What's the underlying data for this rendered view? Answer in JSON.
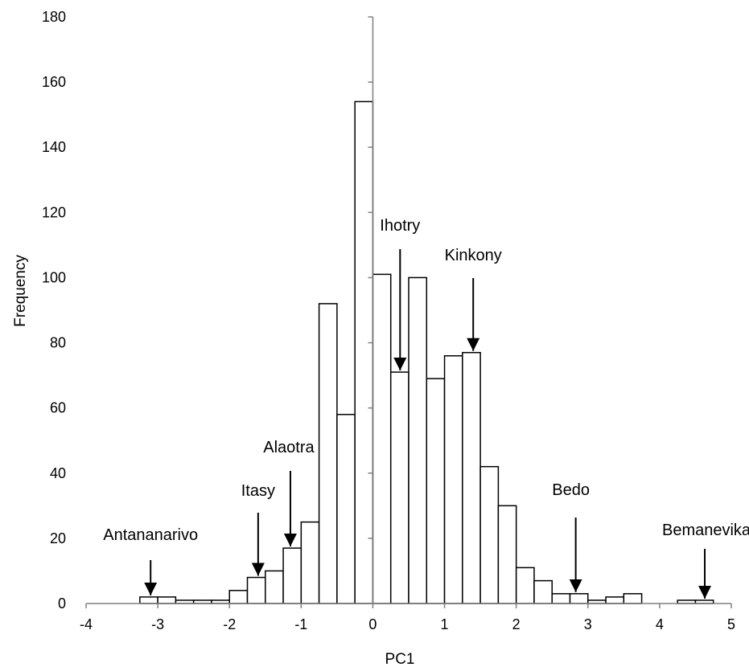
{
  "chart_data": {
    "type": "bar",
    "title": "",
    "xlabel": "PC1",
    "ylabel": "Frequency",
    "xlim": [
      -4,
      5
    ],
    "ylim": [
      0,
      180
    ],
    "x_ticks": [
      "-4",
      "-3",
      "-2",
      "-1",
      "0",
      "1",
      "2",
      "3",
      "4",
      "5"
    ],
    "y_ticks": [
      "0",
      "20",
      "40",
      "60",
      "80",
      "100",
      "120",
      "140",
      "160",
      "180"
    ],
    "grid": false,
    "legend": "none",
    "bar_fill": "#ffffff",
    "bar_stroke": "#000000",
    "bins": [
      {
        "x0": -3.25,
        "x1": -3.0,
        "value": 2
      },
      {
        "x0": -3.0,
        "x1": -2.75,
        "value": 2
      },
      {
        "x0": -2.75,
        "x1": -2.5,
        "value": 1
      },
      {
        "x0": -2.5,
        "x1": -2.25,
        "value": 1
      },
      {
        "x0": -2.25,
        "x1": -2.0,
        "value": 1
      },
      {
        "x0": -2.0,
        "x1": -1.75,
        "value": 4
      },
      {
        "x0": -1.75,
        "x1": -1.5,
        "value": 8
      },
      {
        "x0": -1.5,
        "x1": -1.25,
        "value": 10
      },
      {
        "x0": -1.25,
        "x1": -1.0,
        "value": 17
      },
      {
        "x0": -1.0,
        "x1": -0.75,
        "value": 25
      },
      {
        "x0": -0.75,
        "x1": -0.5,
        "value": 92
      },
      {
        "x0": -0.5,
        "x1": -0.25,
        "value": 58
      },
      {
        "x0": -0.25,
        "x1": 0.0,
        "value": 154
      },
      {
        "x0": 0.0,
        "x1": 0.25,
        "value": 101
      },
      {
        "x0": 0.25,
        "x1": 0.5,
        "value": 71
      },
      {
        "x0": 0.5,
        "x1": 0.75,
        "value": 100
      },
      {
        "x0": 0.75,
        "x1": 1.0,
        "value": 69
      },
      {
        "x0": 1.0,
        "x1": 1.25,
        "value": 76
      },
      {
        "x0": 1.25,
        "x1": 1.5,
        "value": 77
      },
      {
        "x0": 1.5,
        "x1": 1.75,
        "value": 42
      },
      {
        "x0": 1.75,
        "x1": 2.0,
        "value": 30
      },
      {
        "x0": 2.0,
        "x1": 2.25,
        "value": 11
      },
      {
        "x0": 2.25,
        "x1": 2.5,
        "value": 7
      },
      {
        "x0": 2.5,
        "x1": 2.75,
        "value": 3
      },
      {
        "x0": 2.75,
        "x1": 3.0,
        "value": 3
      },
      {
        "x0": 3.0,
        "x1": 3.25,
        "value": 1
      },
      {
        "x0": 3.25,
        "x1": 3.5,
        "value": 2
      },
      {
        "x0": 3.5,
        "x1": 3.75,
        "value": 3
      },
      {
        "x0": 4.25,
        "x1": 4.5,
        "value": 1
      },
      {
        "x0": 4.5,
        "x1": 4.75,
        "value": 1
      }
    ],
    "annotations": [
      {
        "label": "Antananarivo",
        "x": -3.1,
        "y": 2
      },
      {
        "label": "Itasy",
        "x": -1.6,
        "y": 8
      },
      {
        "label": "Alaotra",
        "x": -1.15,
        "y": 17
      },
      {
        "label": "Ihotry",
        "x": 0.38,
        "y": 71
      },
      {
        "label": "Kinkony",
        "x": 1.4,
        "y": 77
      },
      {
        "label": "Bedo",
        "x": 2.83,
        "y": 3
      },
      {
        "label": "Bemanevika",
        "x": 4.63,
        "y": 1
      }
    ]
  }
}
